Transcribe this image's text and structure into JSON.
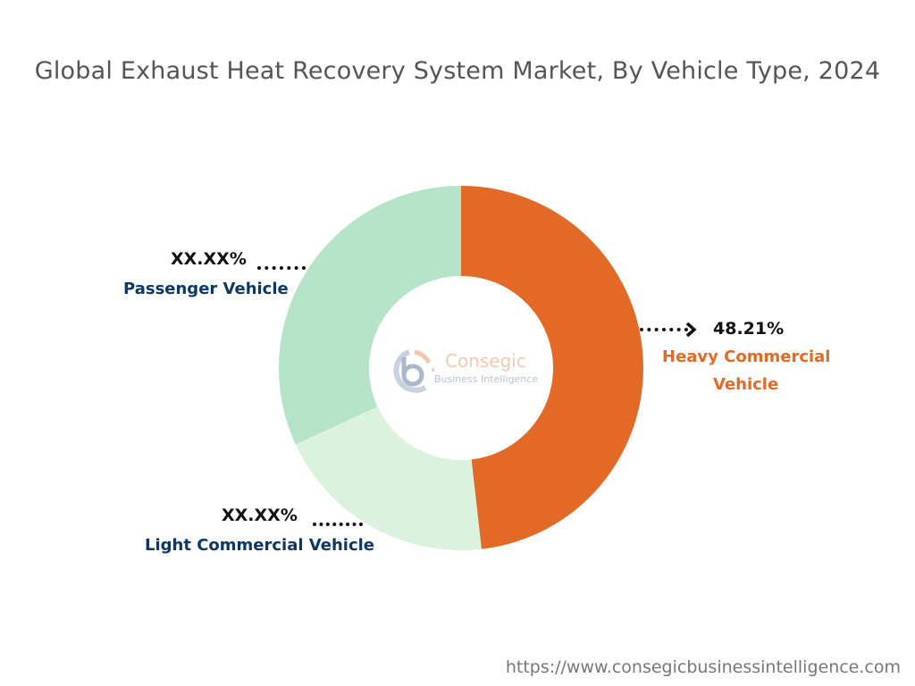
{
  "chart_data": {
    "type": "pie",
    "donut": true,
    "title": "Global Exhaust Heat Recovery System Market, By Vehicle Type, 2024",
    "categories": [
      "Heavy Commercial Vehicle",
      "Light Commercial Vehicle",
      "Passenger Vehicle"
    ],
    "values": [
      48.21,
      19.9,
      31.89
    ],
    "value_labels": [
      "48.21%",
      "XX.XX%",
      "XX.XX%"
    ],
    "colors": [
      "#e36a26",
      "#daf2de",
      "#b6e4c9"
    ],
    "label_colors": [
      "#e36a26",
      "#0d3863",
      "#0d3863"
    ],
    "start_angle": "top, clockwise"
  },
  "labels": {
    "hcv_line1": "Heavy Commercial",
    "hcv_line2": "Vehicle",
    "lcv": "Light Commercial Vehicle",
    "pv": "Passenger Vehicle"
  },
  "logo": {
    "brand": "Consegic",
    "sub": "Business Intelligence"
  },
  "footer": {
    "url": "https://www.consegicbusinessintelligence.com"
  }
}
